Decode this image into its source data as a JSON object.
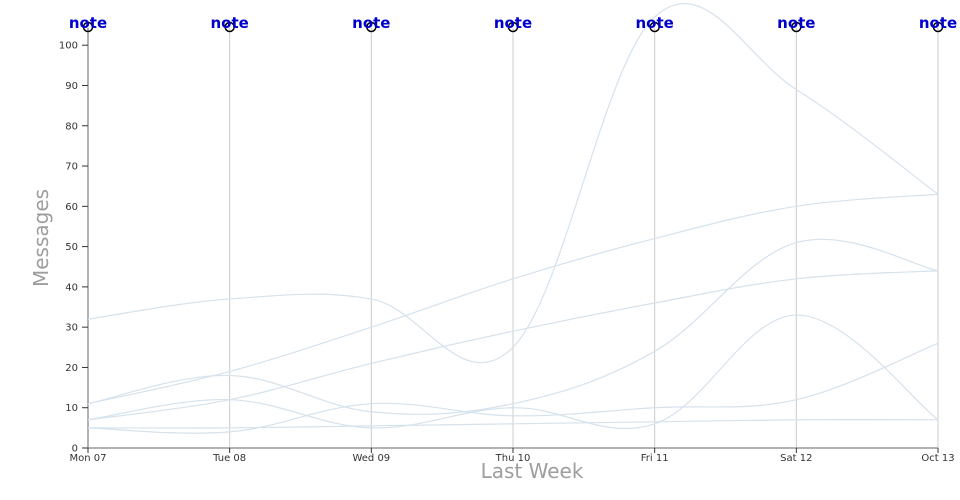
{
  "chart_data": {
    "type": "line",
    "title": "",
    "xlabel": "Last Week",
    "ylabel": "Messages",
    "categories": [
      "Mon 07",
      "Tue 08",
      "Wed 09",
      "Thu 10",
      "Fri 11",
      "Sat 12",
      "Oct 13"
    ],
    "ylim": [
      0,
      107
    ],
    "y_ticks": [
      0,
      10,
      20,
      30,
      40,
      50,
      60,
      70,
      80,
      90,
      100
    ],
    "grid": "vertical lines at each day",
    "annotation_label": "note",
    "line_color": "#d6e2ec",
    "annotation_color": "#0000cc",
    "series": [
      {
        "values": [
          32,
          37,
          37,
          25,
          107,
          89,
          63
        ]
      },
      {
        "values": [
          11,
          19,
          30,
          42,
          52,
          60,
          63
        ]
      },
      {
        "values": [
          7,
          12,
          21,
          29,
          36,
          42,
          44
        ]
      },
      {
        "values": [
          11,
          18,
          9,
          11,
          24,
          51,
          44
        ]
      },
      {
        "values": [
          7,
          12,
          5,
          10,
          6,
          33,
          7
        ]
      },
      {
        "values": [
          5,
          4,
          11,
          8,
          10,
          12,
          26
        ]
      },
      {
        "values": [
          5,
          5,
          5.5,
          6,
          6.5,
          7,
          7
        ]
      }
    ]
  }
}
